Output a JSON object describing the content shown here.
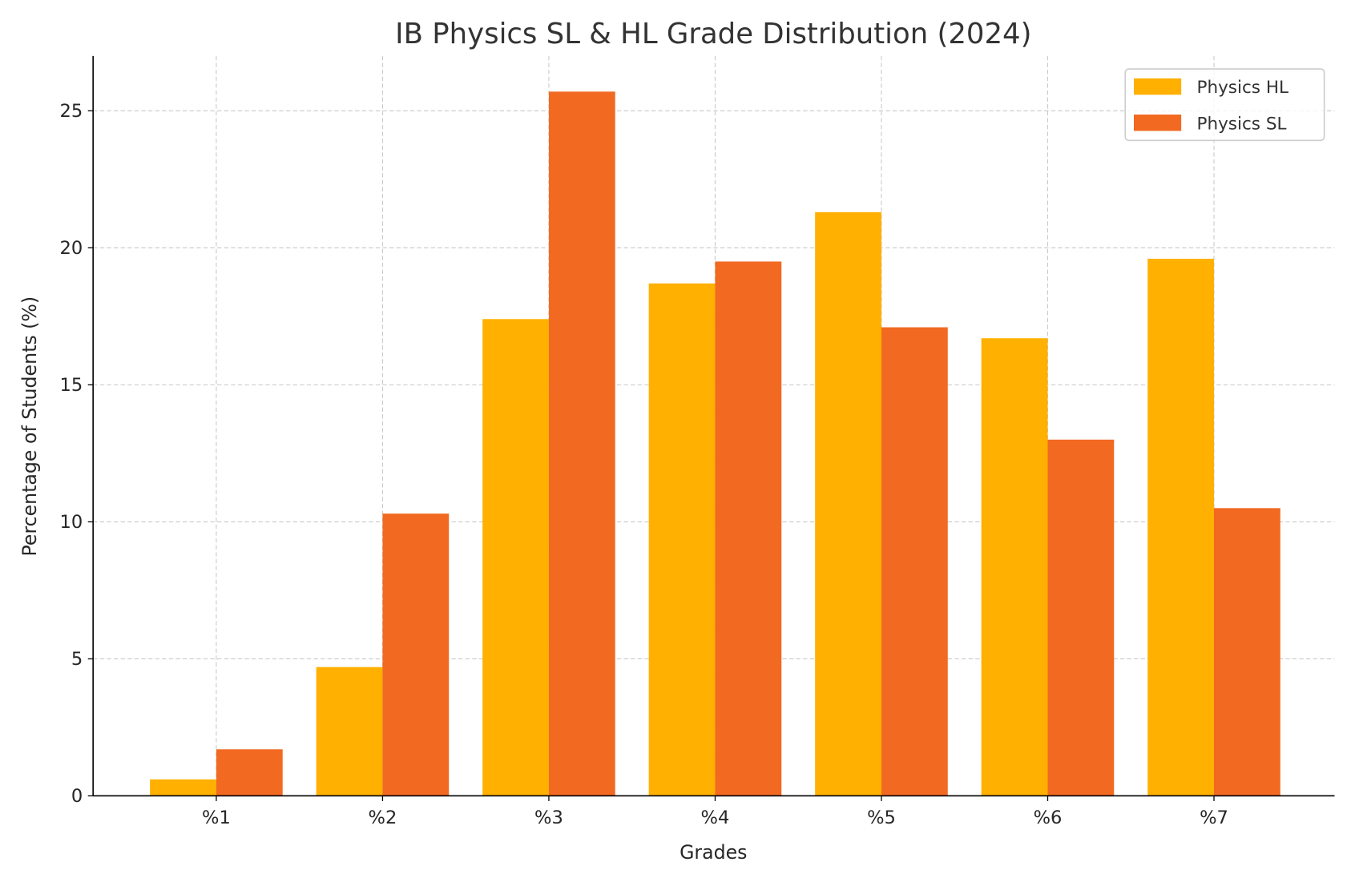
{
  "chart_data": {
    "type": "bar",
    "title": "IB Physics SL & HL Grade Distribution (2024)",
    "xlabel": "Grades",
    "ylabel": "Percentage of Students (%)",
    "categories": [
      "%1",
      "%2",
      "%3",
      "%4",
      "%5",
      "%6",
      "%7"
    ],
    "series": [
      {
        "name": "Physics HL",
        "color": "#FFB000",
        "values": [
          0.6,
          4.7,
          17.4,
          18.7,
          21.3,
          16.7,
          19.6
        ]
      },
      {
        "name": "Physics SL",
        "color": "#F26922",
        "values": [
          1.7,
          10.3,
          25.7,
          19.5,
          17.1,
          13.0,
          10.5
        ]
      }
    ],
    "ylim": [
      0,
      27
    ],
    "yticks": [
      0,
      5,
      10,
      15,
      20,
      25
    ],
    "grid": true,
    "legend": "top-right"
  }
}
